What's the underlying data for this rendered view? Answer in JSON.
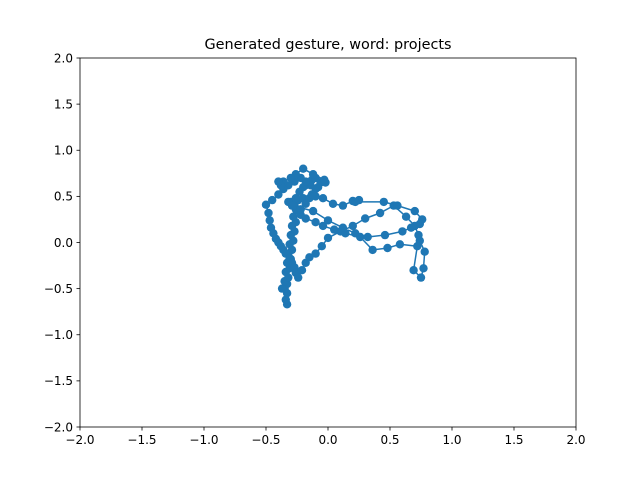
{
  "chart_data": {
    "type": "line",
    "title": "Generated gesture, word: projects",
    "xlabel": "",
    "ylabel": "",
    "xlim": [
      -2.0,
      2.0
    ],
    "ylim": [
      -2.0,
      2.0
    ],
    "xticks": [
      -2.0,
      -1.5,
      -1.0,
      -0.5,
      0.0,
      0.5,
      1.0,
      1.5,
      2.0
    ],
    "yticks": [
      -2.0,
      -1.5,
      -1.0,
      -0.5,
      0.0,
      0.5,
      1.0,
      1.5,
      2.0
    ],
    "xtick_labels": [
      "−2.0",
      "−1.5",
      "−1.0",
      "−0.5",
      "0.0",
      "0.5",
      "1.0",
      "1.5",
      "2.0"
    ],
    "ytick_labels": [
      "−2.0",
      "−1.5",
      "−1.0",
      "−0.5",
      "0.0",
      "0.5",
      "1.0",
      "1.5",
      "2.0"
    ],
    "grid": false,
    "legend": false,
    "color": "#1f77b4",
    "marker": "circle",
    "series": [
      {
        "x": [
          -0.33,
          -0.34,
          -0.33,
          -0.35,
          -0.33,
          -0.37,
          -0.35,
          -0.32,
          -0.34,
          -0.31,
          -0.33,
          -0.3,
          -0.32,
          -0.29,
          -0.31,
          -0.28,
          -0.3,
          -0.27,
          -0.29,
          -0.26,
          -0.28,
          -0.25,
          -0.27,
          -0.26,
          -0.23,
          -0.2,
          -0.18,
          -0.16,
          -0.13,
          -0.1,
          -0.06,
          -0.02,
          -0.1,
          -0.14,
          -0.18,
          -0.22,
          -0.27,
          -0.32,
          -0.36,
          -0.4,
          -0.45,
          -0.5,
          -0.48,
          -0.47,
          -0.46,
          -0.44,
          -0.42,
          -0.4,
          -0.38,
          -0.36,
          -0.34,
          -0.31,
          -0.29,
          -0.27,
          -0.26,
          -0.24,
          -0.21,
          -0.18,
          -0.15,
          -0.1,
          -0.05,
          0.0,
          0.1,
          0.2,
          0.3,
          0.42,
          0.53,
          0.63,
          0.7,
          0.73,
          0.74,
          0.78,
          0.77,
          0.75,
          0.69,
          0.72,
          0.58,
          0.48,
          0.36,
          0.26,
          0.14,
          0.05,
          -0.04,
          -0.1,
          -0.18,
          -0.22,
          -0.26,
          -0.28,
          -0.3,
          -0.29,
          -0.27,
          -0.24,
          -0.2,
          -0.15,
          -0.1,
          -0.04,
          0.04,
          0.12,
          0.2,
          0.25,
          0.22,
          0.45,
          0.56,
          0.7,
          0.76,
          0.74,
          0.67,
          0.6,
          0.46,
          0.32,
          0.22,
          0.12,
          0.0,
          -0.12,
          -0.28,
          -0.32,
          -0.28,
          -0.22,
          -0.18,
          -0.13,
          -0.08,
          -0.03,
          -0.12,
          -0.2,
          -0.26,
          -0.3,
          -0.36,
          -0.38,
          -0.4
        ],
        "y": [
          -0.67,
          -0.62,
          -0.55,
          -0.5,
          -0.45,
          -0.5,
          -0.42,
          -0.38,
          -0.32,
          -0.28,
          -0.22,
          -0.18,
          -0.12,
          -0.08,
          -0.02,
          0.02,
          0.08,
          0.12,
          0.18,
          0.22,
          0.28,
          0.35,
          0.4,
          0.48,
          0.55,
          0.6,
          0.62,
          0.65,
          0.68,
          0.7,
          0.65,
          0.65,
          0.58,
          0.62,
          0.66,
          0.7,
          0.66,
          0.62,
          0.58,
          0.52,
          0.46,
          0.41,
          0.32,
          0.24,
          0.16,
          0.1,
          0.04,
          0.0,
          -0.04,
          -0.08,
          -0.12,
          -0.17,
          -0.22,
          -0.27,
          -0.33,
          -0.38,
          -0.3,
          -0.22,
          -0.16,
          -0.12,
          -0.04,
          0.05,
          0.12,
          0.18,
          0.26,
          0.32,
          0.4,
          0.28,
          0.18,
          0.08,
          0.02,
          -0.1,
          -0.28,
          -0.38,
          -0.3,
          -0.04,
          -0.02,
          -0.06,
          -0.08,
          0.06,
          0.1,
          0.14,
          0.18,
          0.22,
          0.26,
          0.3,
          0.36,
          0.42,
          0.44,
          0.4,
          0.42,
          0.46,
          0.48,
          0.48,
          0.5,
          0.48,
          0.42,
          0.4,
          0.45,
          0.46,
          0.44,
          0.44,
          0.4,
          0.34,
          0.25,
          0.2,
          0.16,
          0.12,
          0.08,
          0.06,
          0.1,
          0.16,
          0.24,
          0.34,
          0.4,
          0.44,
          0.4,
          0.36,
          0.42,
          0.52,
          0.6,
          0.68,
          0.74,
          0.8,
          0.74,
          0.7,
          0.66,
          0.62,
          0.66
        ]
      }
    ]
  }
}
